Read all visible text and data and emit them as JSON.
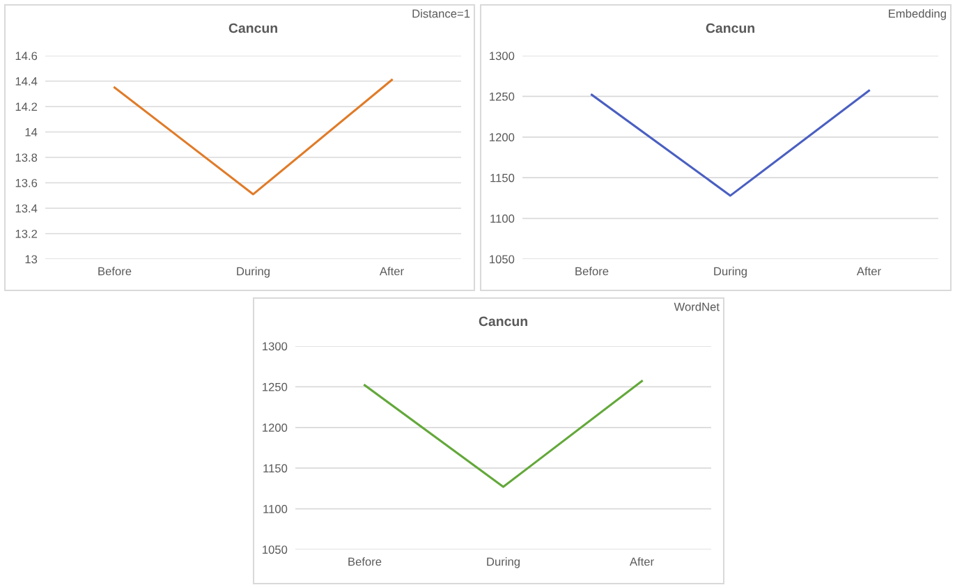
{
  "chart_data": [
    {
      "type": "line",
      "title": "Cancun",
      "annotations": [
        "Distance=1"
      ],
      "categories": [
        "Before",
        "During",
        "After"
      ],
      "series": [
        {
          "color": "#e07b28",
          "values": [
            14.35,
            13.51,
            14.41
          ]
        }
      ],
      "ylim": [
        13,
        14.6
      ],
      "yticks": [
        13,
        13.2,
        13.4,
        13.6,
        13.8,
        14,
        14.2,
        14.4,
        14.6
      ],
      "grid": "y"
    },
    {
      "type": "line",
      "title": "Cancun",
      "annotations": [
        "Embedding"
      ],
      "categories": [
        "Before",
        "During",
        "After"
      ],
      "series": [
        {
          "color": "#4a5fc1",
          "values": [
            1252,
            1128,
            1257
          ]
        }
      ],
      "ylim": [
        1050,
        1300
      ],
      "yticks": [
        1050,
        1100,
        1150,
        1200,
        1250,
        1300
      ],
      "grid": "y"
    },
    {
      "type": "line",
      "title": "Cancun",
      "annotations": [
        "WordNet"
      ],
      "categories": [
        "Before",
        "During",
        "After"
      ],
      "series": [
        {
          "color": "#63a83a",
          "values": [
            1252,
            1127,
            1257
          ]
        }
      ],
      "ylim": [
        1050,
        1300
      ],
      "yticks": [
        1050,
        1100,
        1150,
        1200,
        1250,
        1300
      ],
      "grid": "y"
    }
  ]
}
